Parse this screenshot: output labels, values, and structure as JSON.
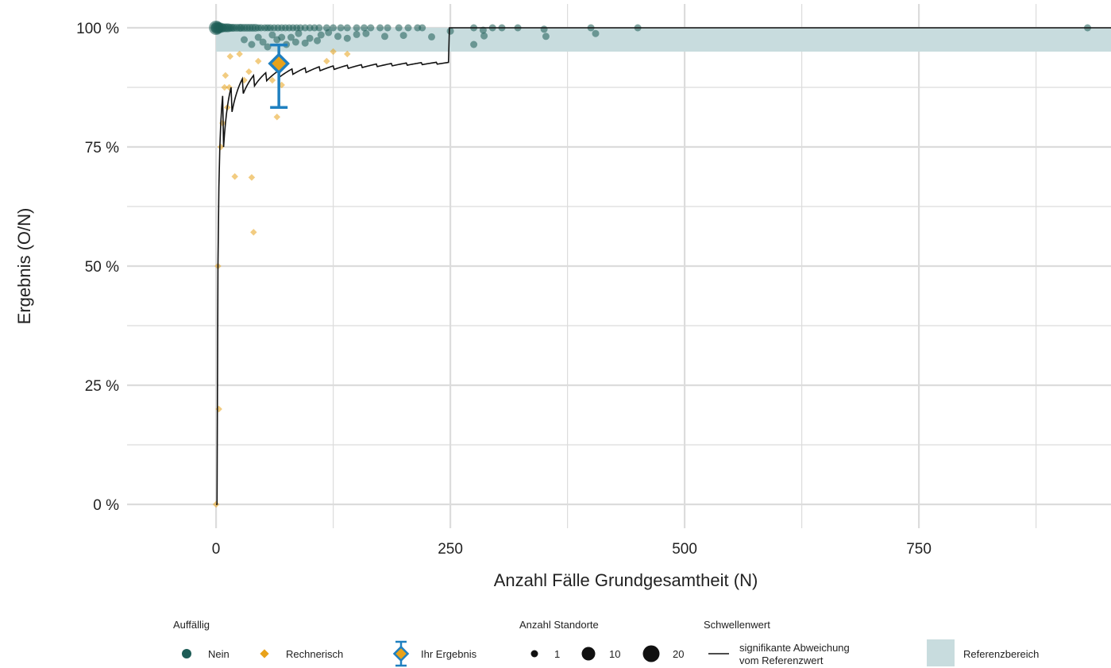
{
  "chart_data": {
    "type": "scatter",
    "xlabel": "Anzahl Fälle Grundgesamtheit (N)",
    "ylabel": "Ergebnis (O/N)",
    "xlim": [
      -95,
      955
    ],
    "ylim": [
      -5,
      105
    ],
    "x_ticks": [
      0,
      250,
      500,
      750
    ],
    "x_tick_labels": [
      "0",
      "250",
      "500",
      "750"
    ],
    "y_ticks": [
      0,
      25,
      50,
      75,
      100
    ],
    "y_tick_labels": [
      "0 %",
      "25 %",
      "50 %",
      "75 %",
      "100 %"
    ],
    "grid": true,
    "reference_range": [
      95,
      100
    ],
    "colors": {
      "nein": "#1d5c56",
      "rechnerisch": "#e8a21a",
      "ihr_ergebnis": "#1f80c0",
      "referenz": "#c8dcde",
      "threshold": "#111111",
      "grid": "#dcdcdc"
    },
    "series": [
      {
        "name": "Nein",
        "points": [
          [
            0,
            100,
            4
          ],
          [
            0,
            100,
            8
          ],
          [
            1,
            100,
            6
          ],
          [
            2,
            100,
            5
          ],
          [
            3,
            100,
            4
          ],
          [
            5,
            100,
            4
          ],
          [
            7,
            100,
            3
          ],
          [
            9,
            100,
            3
          ],
          [
            11,
            100,
            3
          ],
          [
            13,
            100,
            3
          ],
          [
            15,
            100,
            2
          ],
          [
            17,
            100,
            2
          ],
          [
            19,
            100,
            2
          ],
          [
            22,
            100,
            2
          ],
          [
            25,
            100,
            2
          ],
          [
            27,
            100,
            2
          ],
          [
            30,
            100,
            2
          ],
          [
            33,
            100,
            2
          ],
          [
            36,
            100,
            2
          ],
          [
            39,
            100,
            2
          ],
          [
            42,
            100,
            2
          ],
          [
            45,
            100,
            1
          ],
          [
            48,
            100,
            1
          ],
          [
            52,
            100,
            1
          ],
          [
            55,
            100,
            1
          ],
          [
            58,
            100,
            1
          ],
          [
            62,
            100,
            1
          ],
          [
            66,
            100,
            1
          ],
          [
            70,
            100,
            1
          ],
          [
            74,
            100,
            1
          ],
          [
            78,
            100,
            1
          ],
          [
            82,
            100,
            1
          ],
          [
            86,
            100,
            1
          ],
          [
            90,
            100,
            1
          ],
          [
            95,
            100,
            1
          ],
          [
            100,
            100,
            1
          ],
          [
            105,
            100,
            1
          ],
          [
            110,
            100,
            1
          ],
          [
            118,
            100,
            1
          ],
          [
            125,
            100,
            1
          ],
          [
            133,
            100,
            1
          ],
          [
            140,
            100,
            1
          ],
          [
            150,
            100,
            1
          ],
          [
            158,
            100,
            1
          ],
          [
            165,
            100,
            1
          ],
          [
            175,
            100,
            1
          ],
          [
            183,
            100,
            1
          ],
          [
            195,
            100,
            1
          ],
          [
            205,
            100,
            1
          ],
          [
            215,
            100,
            1
          ],
          [
            220,
            100,
            1
          ],
          [
            250,
            99.3,
            1
          ],
          [
            275,
            100,
            1
          ],
          [
            285,
            99.5,
            1
          ],
          [
            295,
            100,
            1
          ],
          [
            305,
            100,
            1
          ],
          [
            322,
            100,
            1
          ],
          [
            350,
            99.7,
            1
          ],
          [
            400,
            100,
            1
          ],
          [
            450,
            100,
            1
          ],
          [
            930,
            100,
            1
          ],
          [
            30,
            97.5,
            1
          ],
          [
            38,
            96.5,
            1
          ],
          [
            45,
            98,
            1
          ],
          [
            50,
            97,
            1
          ],
          [
            55,
            96,
            1
          ],
          [
            60,
            98.5,
            1
          ],
          [
            65,
            97.5,
            1
          ],
          [
            70,
            98,
            1
          ],
          [
            75,
            96.5,
            1
          ],
          [
            80,
            98,
            1
          ],
          [
            85,
            97,
            1
          ],
          [
            88,
            98.8,
            1
          ],
          [
            95,
            96.8,
            1
          ],
          [
            100,
            97.8,
            1
          ],
          [
            108,
            97.3,
            1
          ],
          [
            112,
            98.5,
            1
          ],
          [
            120,
            99,
            1
          ],
          [
            130,
            98.2,
            1
          ],
          [
            140,
            97.8,
            1
          ],
          [
            150,
            98.6,
            1
          ],
          [
            160,
            98.8,
            1
          ],
          [
            180,
            98.2,
            1
          ],
          [
            200,
            98.4,
            1
          ],
          [
            230,
            98.1,
            1
          ],
          [
            275,
            96.5,
            1
          ],
          [
            286,
            98.3,
            1
          ],
          [
            352,
            98.2,
            1
          ],
          [
            405,
            98.8,
            1
          ]
        ]
      },
      {
        "name": "Rechnerisch",
        "points": [
          [
            0,
            0
          ],
          [
            3,
            20
          ],
          [
            2,
            50
          ],
          [
            5,
            75
          ],
          [
            7,
            80
          ],
          [
            9,
            87.5
          ],
          [
            10,
            90
          ],
          [
            12,
            83.3
          ],
          [
            14,
            87.5
          ],
          [
            15,
            94
          ],
          [
            20,
            68.8
          ],
          [
            25,
            94.5
          ],
          [
            30,
            89
          ],
          [
            35,
            90.8
          ],
          [
            38,
            68.6
          ],
          [
            40,
            57.1
          ],
          [
            45,
            93
          ],
          [
            60,
            89
          ],
          [
            65,
            81.3
          ],
          [
            70,
            88
          ],
          [
            118,
            93
          ],
          [
            140,
            94.5
          ],
          [
            125,
            95
          ]
        ]
      }
    ],
    "ihr_ergebnis": {
      "x": 67,
      "y": 92.5,
      "ci": [
        83.3,
        96.4
      ]
    },
    "threshold_line_name": "signifikante Abweichung vom Referenzwert",
    "legend": {
      "placement": "bottom",
      "auffaellig_title": "Auffällig",
      "nein_label": "Nein",
      "rechnerisch_label": "Rechnerisch",
      "ihr_label": "Ihr Ergebnis",
      "standorte_title": "Anzahl Standorte",
      "size_1": "1",
      "size_10": "10",
      "size_20": "20",
      "schwellen_title": "Schwellenwert",
      "schwellen_line1": "signifikante Abweichung",
      "schwellen_line2": "vom Referenzwert",
      "referenz_label": "Referenzbereich"
    }
  }
}
